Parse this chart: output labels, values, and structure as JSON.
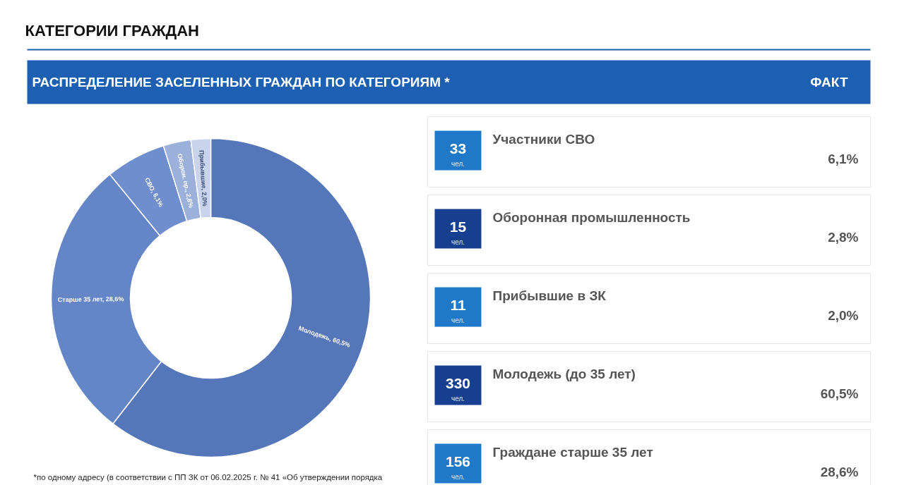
{
  "chart_data": [
    {
      "type": "donut",
      "title": "КАТЕГОРИИ ГРАЖДАН",
      "subtitle": "РАСПРЕДЕЛЕНИЕ ЗАСЕЛЕННЫХ ГРАЖДАН ПО КАТЕГОРИЯМ *",
      "categories": [
        "Молодежь, 60,5%",
        "Старше 35 лет, 28,6%",
        "СВО, 6,1%",
        "Оборон. пр., 2,8%",
        "Прибывшие, 2,0%"
      ],
      "values": [
        60.5,
        28.6,
        6.1,
        2.8,
        2.0
      ],
      "colors": [
        "#5576b8",
        "#6586c6",
        "#6f8ecd",
        "#9bb0da",
        "#c9d4ec"
      ],
      "annotations": [
        "*по одному адресу (в соответствии с ПП ЗК от 06.02.2025 г. № 41 «Об утверждении порядка"
      ]
    },
    {
      "type": "other",
      "title": "ФАКТ",
      "annotations": [
        "33",
        "чел.",
        "Участники СВО",
        "6,1%",
        "15",
        "чел.",
        "Оборонная промышленность",
        "2,8%",
        "11",
        "чел.",
        "Прибывшие в ЗК",
        "2,0%",
        "330",
        "чел.",
        "Молодежь (до 35 лет)",
        "60,5%",
        "156",
        "чел.",
        "Граждане старше 35 лет",
        "28,6%"
      ]
    }
  ]
}
